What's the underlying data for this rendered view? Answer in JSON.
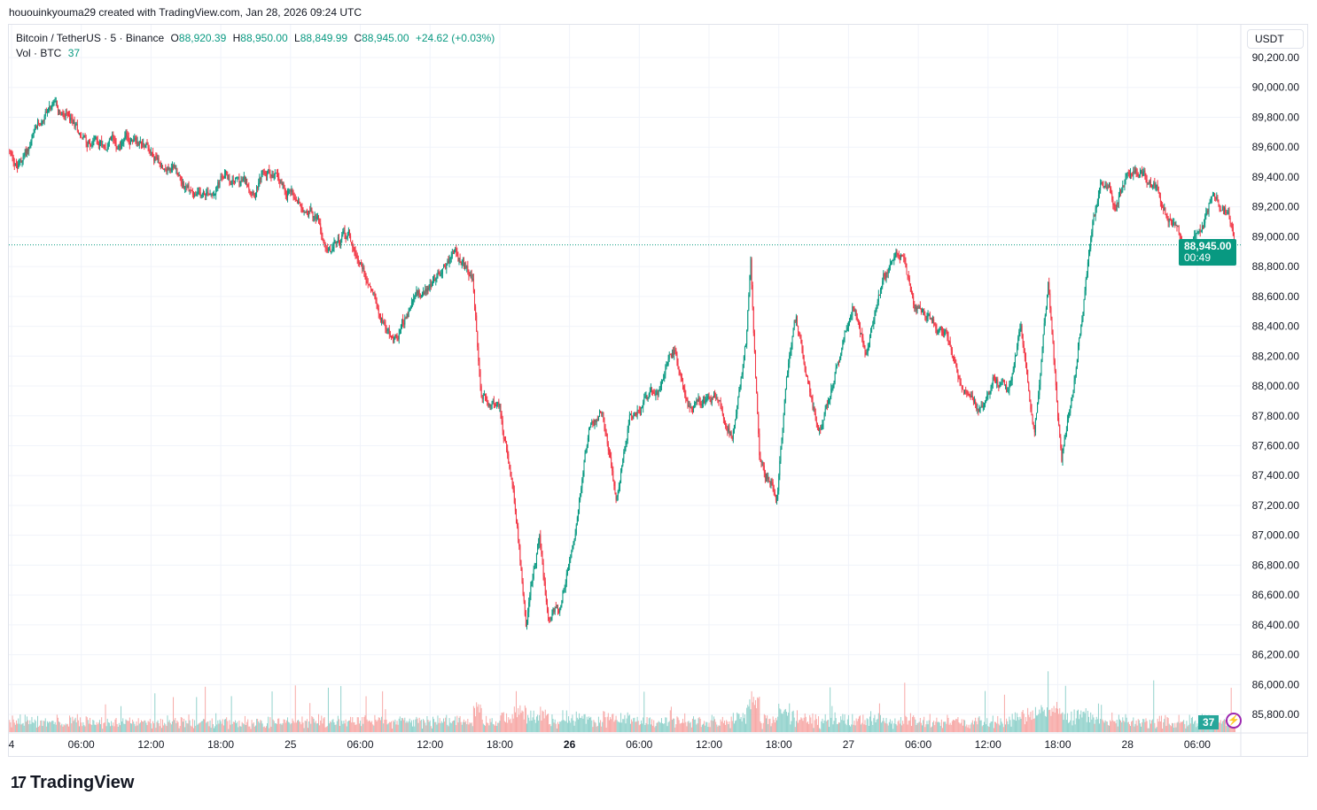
{
  "credit": "hououinkyouma29 created with TradingView.com, Jan 28, 2026 09:24 UTC",
  "legend": {
    "symbol": "Bitcoin / TetherUS · 5 · Binance",
    "o_label": "O",
    "o": "88,920.39",
    "h_label": "H",
    "h": "88,950.00",
    "l_label": "L",
    "l": "88,849.99",
    "c_label": "C",
    "c": "88,945.00",
    "change": "+24.62 (+0.03%)",
    "vol_label": "Vol · BTC",
    "vol": "37"
  },
  "currency": "USDT",
  "last_price": {
    "price": "88,945.00",
    "countdown": "00:49",
    "color": "#089981"
  },
  "volume_label": "37",
  "logo": "TradingView",
  "icons": {
    "logo": "tradingview-logo-icon",
    "alert": "lightning-bolt-icon"
  },
  "chart_data": {
    "type": "candlestick",
    "interval_minutes": 5,
    "ylim": [
      85700,
      90300
    ],
    "y_ticks": [
      "90,200.00",
      "90,000.00",
      "89,800.00",
      "89,600.00",
      "89,400.00",
      "89,200.00",
      "89,000.00",
      "88,800.00",
      "88,600.00",
      "88,400.00",
      "88,200.00",
      "88,000.00",
      "87,800.00",
      "87,600.00",
      "87,400.00",
      "87,200.00",
      "87,000.00",
      "86,800.00",
      "86,600.00",
      "86,400.00",
      "86,200.00",
      "86,000.00",
      "85,800.00"
    ],
    "x_ticks": [
      {
        "t": "2026-01-24T00:00",
        "label": "4",
        "bold": false
      },
      {
        "t": "2026-01-24T06:00",
        "label": "06:00"
      },
      {
        "t": "2026-01-24T12:00",
        "label": "12:00"
      },
      {
        "t": "2026-01-24T18:00",
        "label": "18:00"
      },
      {
        "t": "2026-01-25T00:00",
        "label": "25"
      },
      {
        "t": "2026-01-25T06:00",
        "label": "06:00"
      },
      {
        "t": "2026-01-25T12:00",
        "label": "12:00"
      },
      {
        "t": "2026-01-25T18:00",
        "label": "18:00"
      },
      {
        "t": "2026-01-26T00:00",
        "label": "26",
        "bold": true
      },
      {
        "t": "2026-01-26T06:00",
        "label": "06:00"
      },
      {
        "t": "2026-01-26T12:00",
        "label": "12:00"
      },
      {
        "t": "2026-01-26T18:00",
        "label": "18:00"
      },
      {
        "t": "2026-01-27T00:00",
        "label": "27"
      },
      {
        "t": "2026-01-27T06:00",
        "label": "06:00"
      },
      {
        "t": "2026-01-27T12:00",
        "label": "12:00"
      },
      {
        "t": "2026-01-27T18:00",
        "label": "18:00"
      },
      {
        "t": "2026-01-28T00:00",
        "label": "28"
      },
      {
        "t": "2026-01-28T06:00",
        "label": "06:00"
      }
    ],
    "price_path": [
      [
        "2026-01-23T23:45",
        89578
      ],
      [
        "2026-01-24T00:30",
        89460
      ],
      [
        "2026-01-24T02:00",
        89666
      ],
      [
        "2026-01-24T03:10",
        89870
      ],
      [
        "2026-01-24T04:40",
        89785
      ],
      [
        "2026-01-24T06:30",
        89640
      ],
      [
        "2026-01-24T09:00",
        89640
      ],
      [
        "2026-01-24T11:30",
        89640
      ],
      [
        "2026-01-24T12:45",
        89520
      ],
      [
        "2026-01-24T13:50",
        89460
      ],
      [
        "2026-01-24T16:10",
        89250
      ],
      [
        "2026-01-24T18:20",
        89400
      ],
      [
        "2026-01-24T21:00",
        89340
      ],
      [
        "2026-01-24T22:10",
        89430
      ],
      [
        "2026-01-25T00:00",
        89310
      ],
      [
        "2026-01-25T01:50",
        89190
      ],
      [
        "2026-01-25T03:20",
        88925
      ],
      [
        "2026-01-25T05:00",
        89015
      ],
      [
        "2026-01-25T06:30",
        88750
      ],
      [
        "2026-01-25T08:50",
        88300
      ],
      [
        "2026-01-25T10:20",
        88510
      ],
      [
        "2026-01-25T12:40",
        88750
      ],
      [
        "2026-01-25T14:10",
        88900
      ],
      [
        "2026-01-25T15:40",
        88690
      ],
      [
        "2026-01-25T16:25",
        87920
      ],
      [
        "2026-01-25T18:00",
        87860
      ],
      [
        "2026-01-25T19:10",
        87265
      ],
      [
        "2026-01-25T20:15",
        86435
      ],
      [
        "2026-01-25T21:25",
        86970
      ],
      [
        "2026-01-25T22:10",
        86435
      ],
      [
        "2026-01-25T23:20",
        86550
      ],
      [
        "2026-01-26T00:30",
        87030
      ],
      [
        "2026-01-26T01:40",
        87680
      ],
      [
        "2026-01-26T02:50",
        87860
      ],
      [
        "2026-01-26T04:00",
        87265
      ],
      [
        "2026-01-26T05:10",
        87800
      ],
      [
        "2026-01-26T07:50",
        87975
      ],
      [
        "2026-01-26T09:00",
        88215
      ],
      [
        "2026-01-26T10:10",
        87860
      ],
      [
        "2026-01-26T12:30",
        87920
      ],
      [
        "2026-01-26T14:00",
        87680
      ],
      [
        "2026-01-26T15:10",
        88270
      ],
      [
        "2026-01-26T15:35",
        88800
      ],
      [
        "2026-01-26T16:20",
        87500
      ],
      [
        "2026-01-26T17:50",
        87265
      ],
      [
        "2026-01-26T18:40",
        88095
      ],
      [
        "2026-01-26T19:30",
        88450
      ],
      [
        "2026-01-26T21:25",
        87680
      ],
      [
        "2026-01-26T22:50",
        88095
      ],
      [
        "2026-01-27T00:20",
        88570
      ],
      [
        "2026-01-27T01:30",
        88270
      ],
      [
        "2026-01-27T03:00",
        88750
      ],
      [
        "2026-01-27T04:30",
        88870
      ],
      [
        "2026-01-27T05:40",
        88510
      ],
      [
        "2026-01-27T07:10",
        88390
      ],
      [
        "2026-01-27T08:20",
        88330
      ],
      [
        "2026-01-27T09:50",
        87975
      ],
      [
        "2026-01-27T11:20",
        87860
      ],
      [
        "2026-01-27T12:30",
        88095
      ],
      [
        "2026-01-27T13:40",
        87920
      ],
      [
        "2026-01-27T14:50",
        88390
      ],
      [
        "2026-01-27T16:00",
        87680
      ],
      [
        "2026-01-27T17:10",
        88690
      ],
      [
        "2026-01-27T18:20",
        87500
      ],
      [
        "2026-01-27T19:30",
        88095
      ],
      [
        "2026-01-27T21:00",
        89045
      ],
      [
        "2026-01-27T21:45",
        89400
      ],
      [
        "2026-01-27T22:55",
        89160
      ],
      [
        "2026-01-28T00:00",
        89430
      ],
      [
        "2026-01-28T02:00",
        89400
      ],
      [
        "2026-01-28T03:30",
        89160
      ],
      [
        "2026-01-28T05:00",
        88925
      ],
      [
        "2026-01-28T06:10",
        88985
      ],
      [
        "2026-01-28T07:20",
        89310
      ],
      [
        "2026-01-28T08:30",
        89160
      ],
      [
        "2026-01-28T09:20",
        88945
      ]
    ],
    "last_price": 88945,
    "up_color": "#089981",
    "down_color": "#f23645",
    "volume_up_color": "#92d2cc",
    "volume_down_color": "#f7a9a7",
    "grid": true
  }
}
